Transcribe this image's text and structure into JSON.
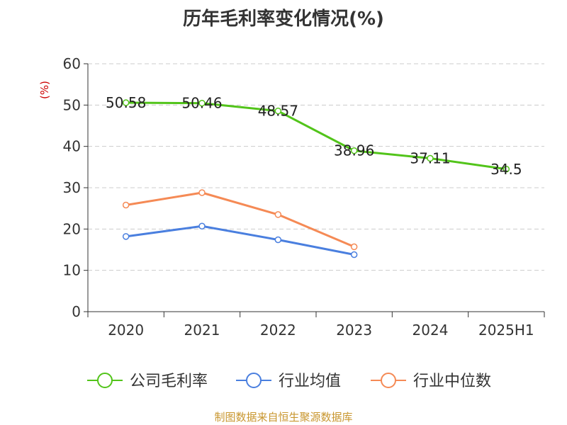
{
  "chart_data": {
    "type": "line",
    "title": "历年毛利率变化情况(%)",
    "ylabel": "(%)",
    "categories": [
      "2020",
      "2021",
      "2022",
      "2023",
      "2024",
      "2025H1"
    ],
    "ylim": [
      0,
      60
    ],
    "yticks": [
      0,
      10,
      20,
      30,
      40,
      50,
      60
    ],
    "grid": true,
    "legend_position": "bottom",
    "series": [
      {
        "name": "公司毛利率",
        "color": "#52c41a",
        "values": [
          50.58,
          50.46,
          48.57,
          38.96,
          37.11,
          34.5
        ],
        "labels": [
          "50.58",
          "50.46",
          "48.57",
          "38.96",
          "37.11",
          "34.5"
        ]
      },
      {
        "name": "行业均值",
        "color": "#4a7fdf",
        "values": [
          18.2,
          20.7,
          17.4,
          13.8,
          null,
          null
        ]
      },
      {
        "name": "行业中位数",
        "color": "#f58a55",
        "values": [
          25.8,
          28.8,
          23.5,
          15.7,
          null,
          null
        ]
      }
    ]
  },
  "footer": {
    "source": "制图数据来自恒生聚源数据库"
  }
}
